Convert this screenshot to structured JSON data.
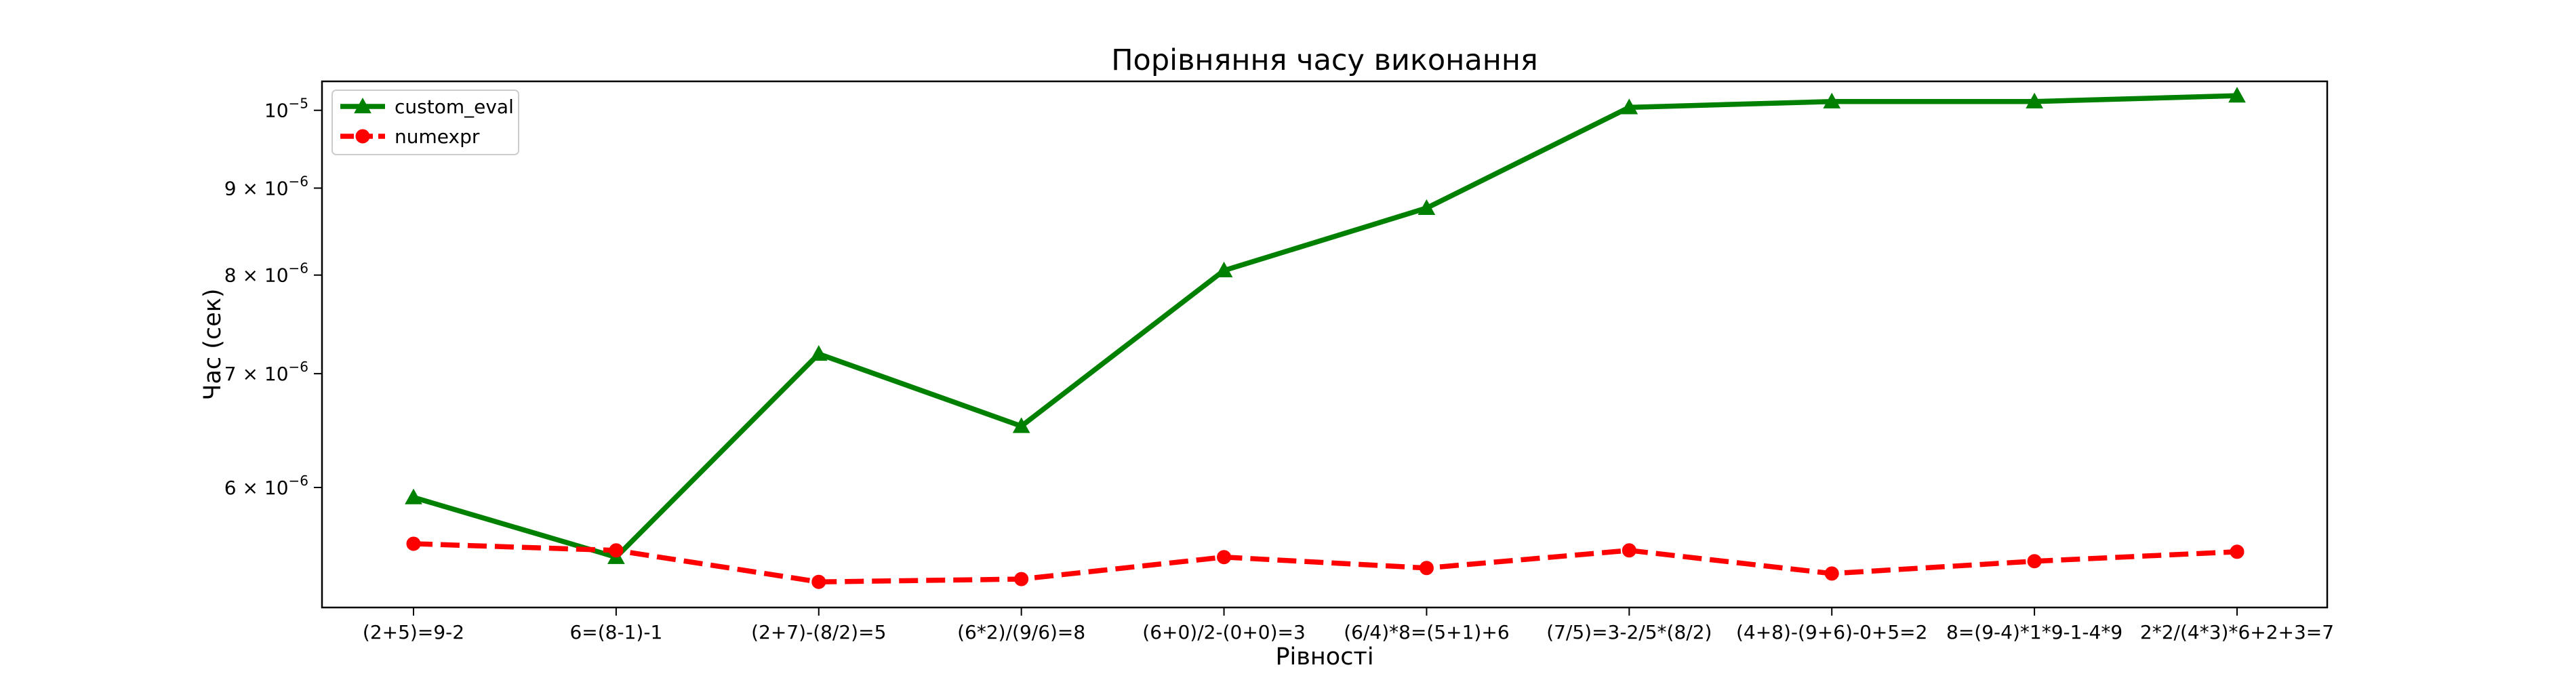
{
  "chart_data": {
    "type": "line",
    "title": "Порівняння часу виконання",
    "xlabel": "Рівності",
    "ylabel": "Час (сек)",
    "yscale": "log",
    "ylim": [
      5.1e-06,
      1.04e-05
    ],
    "grid": false,
    "legend_position": "top-left",
    "categories": [
      "(2+5)=9-2",
      "6=(8-1)-1",
      "(2+7)-(8/2)=5",
      "(6*2)/(9/6)=8",
      "(6+0)/2-(0+0)=3",
      "(6/4)*8=(5+1)+6",
      "(7/5)=3-2/5*(8/2)",
      "(4+8)-(9+6)-0+5=2",
      "8=(9-4)*1*9-1-4*9",
      "2*2/(4*3)*6+2+3=7"
    ],
    "y_ticks": [
      {
        "value": 6e-06,
        "mantissa": "6",
        "exponent": "−6"
      },
      {
        "value": 7e-06,
        "mantissa": "7",
        "exponent": "−6"
      },
      {
        "value": 8e-06,
        "mantissa": "8",
        "exponent": "−6"
      },
      {
        "value": 9e-06,
        "mantissa": "9",
        "exponent": "−6"
      },
      {
        "value": 1e-05,
        "mantissa": "",
        "exponent": "−5"
      }
    ],
    "series": [
      {
        "name": "custom_eval",
        "color": "#008000",
        "marker": "triangle",
        "linestyle": "solid",
        "values": [
          5.92e-06,
          5.46e-06,
          7.19e-06,
          6.52e-06,
          8.05e-06,
          8.76e-06,
          1.004e-05,
          1.012e-05,
          1.012e-05,
          1.02e-05
        ]
      },
      {
        "name": "numexpr",
        "color": "#ff0000",
        "marker": "circle",
        "linestyle": "dashed",
        "values": [
          5.56e-06,
          5.51e-06,
          5.28e-06,
          5.3e-06,
          5.46e-06,
          5.38e-06,
          5.51e-06,
          5.34e-06,
          5.43e-06,
          5.5e-06
        ]
      }
    ]
  }
}
